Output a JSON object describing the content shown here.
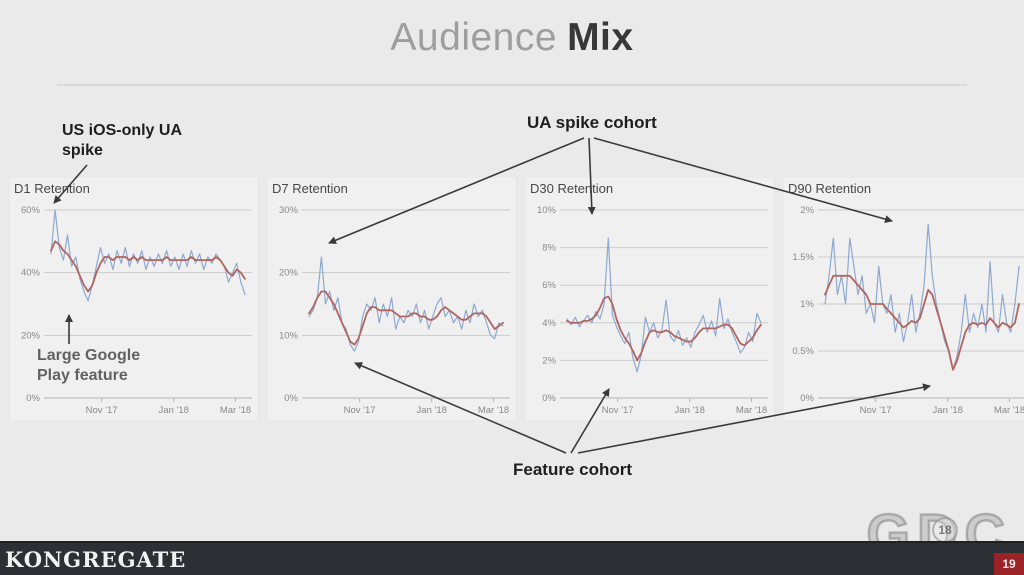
{
  "slide": {
    "title": {
      "regular": "Audience",
      "bold": "Mix"
    },
    "footer": {
      "logo_text": "KONGREGATE",
      "page_number": "19"
    },
    "watermark": {
      "text": "GDC",
      "year": "18"
    }
  },
  "annotations": {
    "us_ios_spike": "US iOS-only UA spike",
    "google_play_feature": "Large Google Play feature",
    "ua_spike_cohort": "UA spike cohort",
    "feature_cohort": "Feature cohort"
  },
  "colors": {
    "background": "#eaeaea",
    "daily_line": "#8ea8cf",
    "average_line": "#b06560",
    "gridline": "#cccccc",
    "axis_line": "#b5b5b5",
    "footer_bar": "#2c2f33",
    "page_badge": "#9b2227",
    "title_regular": "#9e9e9e",
    "title_bold": "#383838",
    "annotation_text": "#1e1e1e"
  },
  "chart_data": [
    {
      "type": "line",
      "title": "D1 Retention",
      "ylim": [
        0,
        60
      ],
      "grid": true,
      "y_ticks": [
        {
          "value": 0,
          "label": "0%"
        },
        {
          "value": 20,
          "label": "20%"
        },
        {
          "value": 40,
          "label": "40%"
        },
        {
          "value": 60,
          "label": "60%"
        }
      ],
      "x_ticks": [
        {
          "pos": 0.27,
          "label": "Nov '17"
        },
        {
          "pos": 0.62,
          "label": "Jan '18"
        },
        {
          "pos": 0.92,
          "label": "Mar '18"
        }
      ],
      "series": [
        {
          "name": "daily retention",
          "color": "#8ea8cf",
          "values": [
            46,
            60,
            48,
            44,
            52,
            42,
            45,
            38,
            34,
            31,
            36,
            42,
            48,
            43,
            46,
            41,
            47,
            43,
            48,
            42,
            46,
            43,
            47,
            41,
            45,
            42,
            46,
            43,
            47,
            42,
            45,
            41,
            46,
            42,
            47,
            43,
            46,
            41,
            45,
            43,
            46,
            44,
            42,
            37,
            40,
            43,
            37,
            33
          ]
        },
        {
          "name": "rolling average",
          "color": "#b06560",
          "values": [
            47,
            50,
            49,
            47,
            46,
            44,
            42,
            39,
            36,
            34,
            36,
            40,
            43,
            45,
            45,
            44,
            45,
            45,
            45,
            44,
            45,
            44,
            45,
            44,
            44,
            44,
            44,
            44,
            45,
            44,
            44,
            44,
            44,
            44,
            45,
            44,
            44,
            44,
            44,
            44,
            45,
            44,
            42,
            40,
            39,
            41,
            40,
            38
          ]
        }
      ]
    },
    {
      "type": "line",
      "title": "D7 Retention",
      "ylim": [
        0,
        30
      ],
      "grid": true,
      "y_ticks": [
        {
          "value": 0,
          "label": "0%"
        },
        {
          "value": 10,
          "label": "10%"
        },
        {
          "value": 20,
          "label": "20%"
        },
        {
          "value": 30,
          "label": "30%"
        }
      ],
      "x_ticks": [
        {
          "pos": 0.27,
          "label": "Nov '17"
        },
        {
          "pos": 0.62,
          "label": "Jan '18"
        },
        {
          "pos": 0.92,
          "label": "Mar '18"
        }
      ],
      "series": [
        {
          "name": "daily retention",
          "color": "#8ea8cf",
          "values": [
            13,
            14,
            16,
            22.5,
            15,
            17,
            14,
            16,
            12,
            11,
            8.5,
            7.5,
            9,
            13,
            15,
            14,
            16,
            12,
            15,
            13,
            16,
            11,
            13,
            12,
            14,
            13,
            15,
            12,
            14,
            11,
            13,
            15,
            16,
            13,
            14,
            12,
            13,
            11,
            14,
            12,
            15,
            13,
            14,
            12,
            10,
            9.5,
            12,
            11.5
          ]
        },
        {
          "name": "rolling average",
          "color": "#b06560",
          "values": [
            13.5,
            14.5,
            16,
            17,
            17,
            16,
            15,
            13.5,
            12,
            10.5,
            9,
            8.5,
            9.5,
            11.5,
            13.5,
            14.5,
            14.5,
            14,
            14,
            14,
            14,
            13.5,
            13,
            13,
            13,
            13.5,
            13.5,
            13,
            13,
            12.5,
            12.5,
            13,
            14,
            14.5,
            14,
            13.5,
            13,
            12.5,
            12.5,
            13,
            13.5,
            13.5,
            13.5,
            13,
            12,
            11,
            11.5,
            12
          ]
        }
      ]
    },
    {
      "type": "line",
      "title": "D30 Retention",
      "ylim": [
        0,
        10
      ],
      "grid": true,
      "y_ticks": [
        {
          "value": 0,
          "label": "0%"
        },
        {
          "value": 2,
          "label": "2%"
        },
        {
          "value": 4,
          "label": "4%"
        },
        {
          "value": 6,
          "label": "6%"
        },
        {
          "value": 8,
          "label": "8%"
        },
        {
          "value": 10,
          "label": "10%"
        }
      ],
      "x_ticks": [
        {
          "pos": 0.27,
          "label": "Nov '17"
        },
        {
          "pos": 0.62,
          "label": "Jan '18"
        },
        {
          "pos": 0.92,
          "label": "Mar '18"
        }
      ],
      "series": [
        {
          "name": "daily retention",
          "color": "#8ea8cf",
          "values": [
            4.2,
            3.9,
            4.3,
            3.8,
            4.1,
            4.4,
            4.0,
            4.6,
            4.2,
            5.0,
            8.5,
            4.4,
            3.8,
            3.3,
            2.9,
            3.5,
            2.1,
            1.4,
            2.3,
            4.3,
            3.5,
            4.0,
            3.2,
            3.6,
            5.2,
            3.3,
            3.0,
            3.6,
            2.8,
            3.2,
            2.7,
            3.5,
            3.9,
            4.4,
            3.5,
            4.1,
            3.3,
            5.3,
            3.7,
            4.2,
            3.5,
            3.0,
            2.4,
            2.7,
            3.5,
            3.0,
            4.5,
            4.0
          ]
        },
        {
          "name": "rolling average",
          "color": "#b06560",
          "values": [
            4.1,
            4.0,
            4.0,
            4.0,
            4.1,
            4.1,
            4.2,
            4.4,
            4.8,
            5.3,
            5.4,
            5.0,
            4.2,
            3.6,
            3.2,
            2.9,
            2.5,
            2.0,
            2.4,
            3.0,
            3.5,
            3.6,
            3.5,
            3.5,
            3.6,
            3.5,
            3.3,
            3.2,
            3.1,
            3.0,
            3.0,
            3.2,
            3.5,
            3.7,
            3.7,
            3.7,
            3.7,
            3.8,
            3.9,
            3.9,
            3.7,
            3.3,
            2.9,
            2.8,
            3.0,
            3.2,
            3.6,
            3.9
          ]
        }
      ]
    },
    {
      "type": "line",
      "title": "D90 Retention",
      "ylim": [
        0,
        2
      ],
      "grid": true,
      "y_ticks": [
        {
          "value": 0,
          "label": "0%"
        },
        {
          "value": 0.5,
          "label": "0.5%"
        },
        {
          "value": 1,
          "label": "1%"
        },
        {
          "value": 1.5,
          "label": "1.5%"
        },
        {
          "value": 2,
          "label": "2%"
        }
      ],
      "x_ticks": [
        {
          "pos": 0.27,
          "label": "Nov '17"
        },
        {
          "pos": 0.62,
          "label": "Jan '18"
        },
        {
          "pos": 0.92,
          "label": "Mar '18"
        }
      ],
      "series": [
        {
          "name": "daily retention",
          "color": "#8ea8cf",
          "values": [
            1.0,
            1.3,
            1.7,
            1.1,
            1.3,
            1.0,
            1.7,
            1.4,
            1.1,
            1.3,
            0.9,
            1.0,
            0.8,
            1.4,
            1.0,
            0.9,
            1.1,
            0.7,
            0.9,
            0.6,
            0.8,
            1.1,
            0.7,
            0.9,
            1.2,
            1.85,
            1.3,
            1.0,
            0.8,
            0.6,
            0.5,
            0.3,
            0.45,
            0.7,
            1.1,
            0.7,
            0.9,
            0.75,
            1.0,
            0.7,
            1.45,
            0.8,
            0.7,
            1.1,
            0.8,
            0.7,
            1.0,
            1.4
          ]
        },
        {
          "name": "rolling average",
          "color": "#b06560",
          "values": [
            1.1,
            1.2,
            1.3,
            1.3,
            1.3,
            1.3,
            1.3,
            1.25,
            1.2,
            1.15,
            1.1,
            1.0,
            1.0,
            1.0,
            1.0,
            0.95,
            0.9,
            0.85,
            0.8,
            0.75,
            0.78,
            0.82,
            0.8,
            0.85,
            1.0,
            1.15,
            1.1,
            0.95,
            0.8,
            0.65,
            0.5,
            0.3,
            0.4,
            0.55,
            0.7,
            0.78,
            0.8,
            0.78,
            0.8,
            0.78,
            0.85,
            0.8,
            0.75,
            0.8,
            0.78,
            0.75,
            0.8,
            1.0
          ]
        }
      ]
    }
  ]
}
